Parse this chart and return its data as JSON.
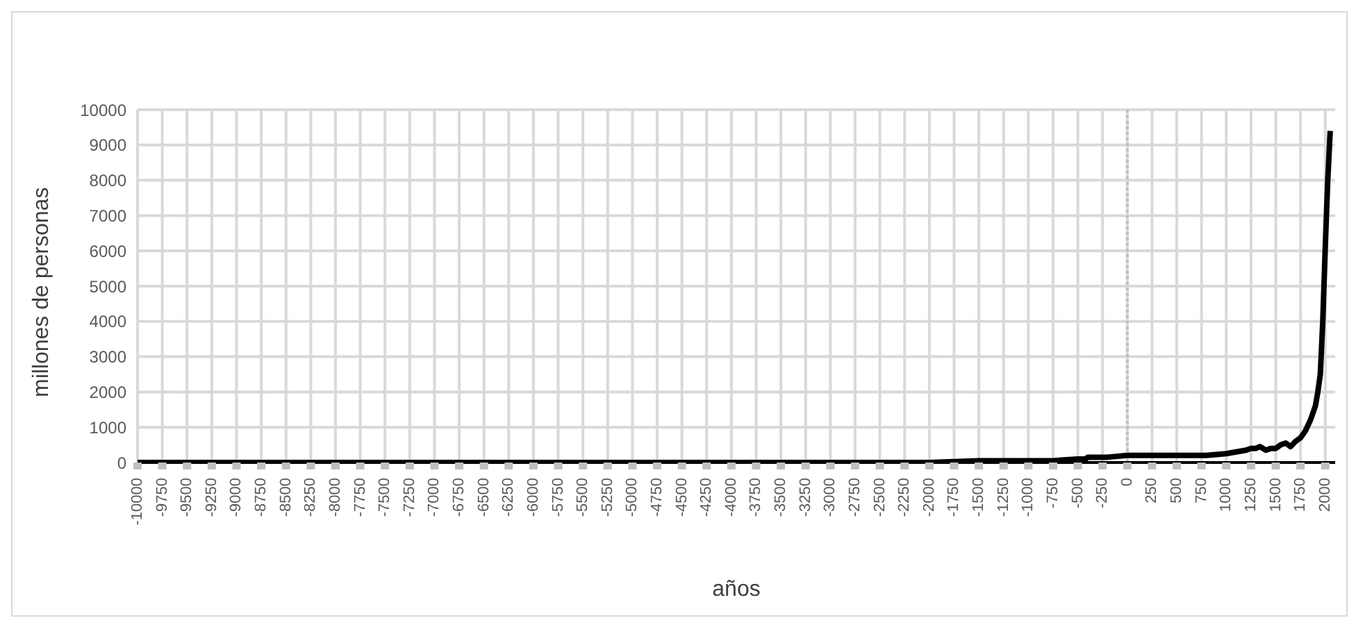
{
  "chart_data": {
    "type": "line",
    "xlabel": "años",
    "ylabel": "millones de personas",
    "x": [
      -10000,
      -8000,
      -6000,
      -5000,
      -4000,
      -3000,
      -2000,
      -1500,
      -1000,
      -750,
      -500,
      -420,
      -400,
      -200,
      0,
      200,
      400,
      600,
      800,
      1000,
      1100,
      1200,
      1250,
      1300,
      1340,
      1400,
      1450,
      1500,
      1550,
      1600,
      1650,
      1700,
      1750,
      1800,
      1850,
      1900,
      1925,
      1950,
      1975,
      2000,
      2025,
      2050
    ],
    "series": [
      {
        "color": "#000000",
        "values": [
          0,
          0,
          0,
          0,
          0,
          0,
          0,
          50,
          50,
          50,
          100,
          100,
          150,
          150,
          200,
          200,
          200,
          200,
          200,
          250,
          300,
          350,
          400,
          400,
          450,
          350,
          400,
          400,
          500,
          550,
          450,
          600,
          700,
          900,
          1200,
          1600,
          2000,
          2500,
          4000,
          6100,
          8000,
          9400
        ]
      }
    ],
    "xlim": [
      -10000,
      2100
    ],
    "xticks": [
      -10000,
      -9750,
      -9500,
      -9250,
      -9000,
      -8750,
      -8500,
      -8250,
      -8000,
      -7750,
      -7500,
      -7250,
      -7000,
      -6750,
      -6500,
      -6250,
      -6000,
      -5750,
      -5500,
      -5250,
      -5000,
      -4750,
      -4500,
      -4250,
      -4000,
      -3750,
      -3500,
      -3250,
      -3000,
      -2750,
      -2500,
      -2250,
      -2000,
      -1750,
      -1500,
      -1250,
      -1000,
      -750,
      -500,
      -250,
      0,
      250,
      500,
      750,
      1000,
      1250,
      1500,
      1750,
      2000
    ],
    "ylim": [
      0,
      10000
    ],
    "yticks": [
      0,
      1000,
      2000,
      3000,
      4000,
      5000,
      6000,
      7000,
      8000,
      9000,
      10000
    ],
    "grid": true,
    "marker": "none",
    "line_style": "solid",
    "ref_lines": [
      {
        "axis": "x",
        "value": 0,
        "color": "#bfbfbf",
        "line_style": "dotted"
      }
    ]
  }
}
